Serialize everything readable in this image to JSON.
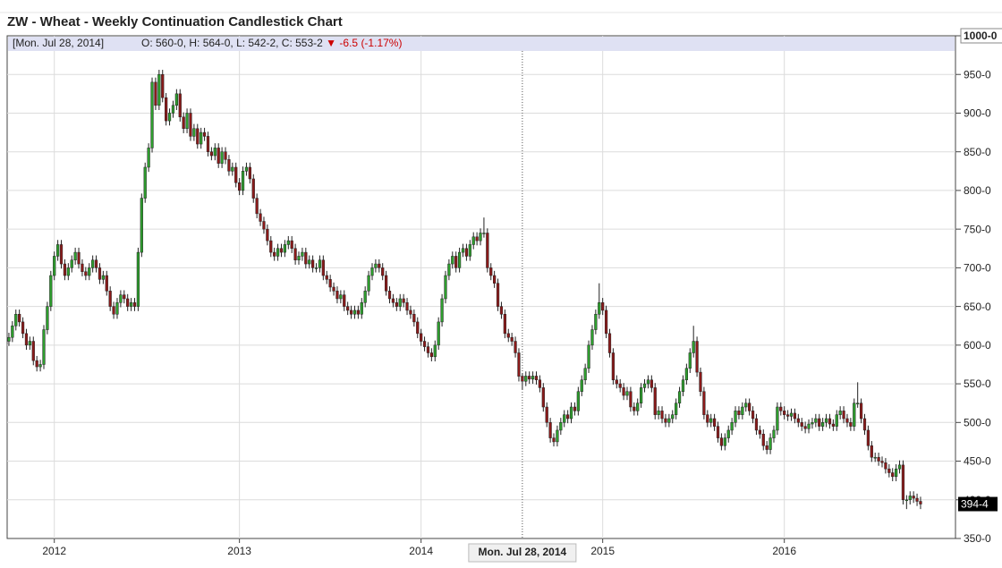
{
  "chart_data": {
    "type": "candlestick",
    "title": "ZW - Wheat - Weekly Continuation Candlestick Chart",
    "hover": {
      "date": "Mon. Jul 28, 2014",
      "date_bracketed": "[Mon. Jul 28, 2014]",
      "open": {
        "value": 560,
        "label": "O: 560-0,"
      },
      "high": {
        "value": 564,
        "label": "H: 564-0,"
      },
      "low": {
        "value": 542.25,
        "label": "L: 542-2,"
      },
      "close": {
        "value": 553.25,
        "label": "C: 553-2"
      },
      "change": {
        "value": -6.5,
        "label": "-6.5"
      },
      "change_pct": {
        "value": -1.17,
        "label": "(-1.17%)"
      }
    },
    "last_price": {
      "value": 394.5,
      "label": "394-4"
    },
    "up_color": "#2e9e2e",
    "down_color": "#8b1a1a",
    "grid": true,
    "xlim": [
      -0.5,
      271
    ],
    "xticks": [
      {
        "value": 13,
        "label": "2012"
      },
      {
        "value": 66,
        "label": "2013"
      },
      {
        "value": 118,
        "label": "2014"
      },
      {
        "value": 170,
        "label": "2015"
      },
      {
        "value": 222,
        "label": "2016"
      }
    ],
    "ylim": [
      350,
      1000
    ],
    "yticks": [
      {
        "value": 350,
        "label": "350-0"
      },
      {
        "value": 400,
        "label": "400-0"
      },
      {
        "value": 450,
        "label": "450-0"
      },
      {
        "value": 500,
        "label": "500-0"
      },
      {
        "value": 550,
        "label": "550-0"
      },
      {
        "value": 600,
        "label": "600-0"
      },
      {
        "value": 650,
        "label": "650-0"
      },
      {
        "value": 700,
        "label": "700-0"
      },
      {
        "value": 750,
        "label": "750-0"
      },
      {
        "value": 800,
        "label": "800-0"
      },
      {
        "value": 850,
        "label": "850-0"
      },
      {
        "value": 900,
        "label": "900-0"
      },
      {
        "value": 950,
        "label": "950-0"
      },
      {
        "value": 1000,
        "label": "1000-0"
      }
    ],
    "open": [
      605,
      610,
      625,
      640,
      630,
      615,
      600,
      605,
      580,
      572,
      575,
      620,
      650,
      690,
      715,
      730,
      705,
      690,
      700,
      710,
      720,
      705,
      695,
      690,
      700,
      710,
      700,
      685,
      690,
      670,
      650,
      640,
      655,
      665,
      660,
      650,
      655,
      650,
      720,
      790,
      830,
      855,
      940,
      910,
      950,
      920,
      890,
      900,
      910,
      925,
      895,
      880,
      900,
      870,
      880,
      860,
      875,
      870,
      850,
      845,
      855,
      835,
      850,
      840,
      825,
      830,
      810,
      800,
      825,
      830,
      815,
      790,
      770,
      760,
      750,
      735,
      720,
      715,
      725,
      720,
      730,
      735,
      725,
      710,
      715,
      720,
      705,
      710,
      700,
      700,
      710,
      690,
      685,
      675,
      670,
      660,
      665,
      650,
      645,
      640,
      645,
      640,
      655,
      670,
      690,
      700,
      705,
      700,
      690,
      670,
      660,
      655,
      650,
      660,
      655,
      645,
      640,
      630,
      615,
      605,
      598,
      590,
      585,
      600,
      630,
      660,
      690,
      705,
      715,
      700,
      720,
      725,
      715,
      730,
      740,
      735,
      745,
      745,
      700,
      690,
      680,
      650,
      640,
      615,
      610,
      605,
      590,
      560,
      553.25,
      560,
      556,
      560,
      555,
      545,
      520,
      500,
      480,
      475,
      490,
      500,
      510,
      505,
      520,
      515,
      540,
      555,
      570,
      600,
      620,
      640,
      655,
      645,
      615,
      590,
      555,
      550,
      545,
      535,
      540,
      520,
      515,
      525,
      545,
      550,
      555,
      545,
      510,
      515,
      505,
      500,
      505,
      510,
      525,
      540,
      555,
      570,
      590,
      605,
      565,
      540,
      510,
      500,
      505,
      495,
      480,
      470,
      480,
      490,
      500,
      515,
      510,
      520,
      525,
      515,
      505,
      490,
      485,
      470,
      465,
      480,
      490,
      520,
      515,
      510,
      508,
      512,
      505,
      500,
      495,
      492,
      498,
      500,
      505,
      495,
      500,
      505,
      498,
      495,
      510,
      515,
      505,
      500,
      495,
      525,
      525,
      505,
      490,
      470,
      455,
      455,
      450,
      448,
      440,
      435,
      430,
      440,
      445,
      400,
      400,
      405,
      402,
      398
    ],
    "high": [
      616,
      631,
      646,
      646,
      636,
      621,
      611,
      611,
      586,
      581,
      626,
      656,
      696,
      721,
      736,
      736,
      711,
      706,
      716,
      726,
      726,
      711,
      701,
      706,
      716,
      716,
      706,
      696,
      696,
      676,
      656,
      661,
      671,
      671,
      666,
      661,
      661,
      726,
      796,
      836,
      861,
      946,
      946,
      956,
      956,
      926,
      906,
      916,
      931,
      931,
      901,
      906,
      906,
      886,
      886,
      881,
      881,
      876,
      856,
      861,
      861,
      856,
      856,
      846,
      836,
      836,
      816,
      831,
      836,
      836,
      821,
      796,
      776,
      766,
      756,
      741,
      726,
      731,
      731,
      736,
      741,
      741,
      731,
      721,
      726,
      726,
      716,
      716,
      706,
      716,
      716,
      696,
      691,
      681,
      676,
      671,
      671,
      656,
      651,
      651,
      651,
      661,
      676,
      696,
      706,
      711,
      711,
      706,
      696,
      676,
      666,
      661,
      666,
      666,
      661,
      651,
      646,
      636,
      621,
      611,
      604,
      596,
      606,
      636,
      666,
      696,
      711,
      721,
      721,
      726,
      731,
      731,
      736,
      746,
      746,
      751,
      765,
      751,
      706,
      696,
      686,
      656,
      646,
      621,
      616,
      611,
      596,
      564,
      566,
      566,
      566,
      566,
      561,
      551,
      526,
      506,
      486,
      496,
      506,
      516,
      516,
      526,
      526,
      546,
      561,
      576,
      606,
      626,
      646,
      680,
      661,
      651,
      621,
      596,
      561,
      556,
      551,
      546,
      546,
      526,
      531,
      551,
      556,
      561,
      561,
      551,
      521,
      521,
      511,
      511,
      516,
      531,
      546,
      561,
      576,
      596,
      625,
      611,
      571,
      546,
      516,
      511,
      511,
      501,
      486,
      486,
      496,
      506,
      521,
      521,
      526,
      531,
      531,
      521,
      511,
      496,
      491,
      476,
      486,
      496,
      526,
      526,
      521,
      516,
      518,
      518,
      511,
      506,
      501,
      504,
      506,
      511,
      511,
      506,
      511,
      511,
      504,
      516,
      521,
      521,
      511,
      506,
      531,
      552,
      531,
      511,
      496,
      476,
      461,
      461,
      456,
      454,
      446,
      441,
      446,
      451,
      451,
      406,
      411,
      411,
      408,
      404
    ],
    "low": [
      599,
      604,
      619,
      624,
      609,
      594,
      594,
      574,
      566,
      566,
      569,
      614,
      644,
      684,
      709,
      699,
      684,
      684,
      694,
      704,
      699,
      689,
      684,
      684,
      694,
      694,
      679,
      679,
      664,
      644,
      634,
      634,
      649,
      654,
      644,
      644,
      644,
      644,
      714,
      784,
      824,
      849,
      904,
      904,
      914,
      884,
      884,
      894,
      904,
      889,
      874,
      874,
      864,
      864,
      854,
      854,
      864,
      844,
      839,
      839,
      829,
      829,
      834,
      819,
      819,
      804,
      794,
      794,
      819,
      809,
      784,
      764,
      754,
      744,
      729,
      714,
      709,
      709,
      714,
      714,
      724,
      719,
      704,
      704,
      709,
      699,
      699,
      694,
      694,
      694,
      684,
      679,
      669,
      664,
      654,
      654,
      644,
      639,
      634,
      634,
      634,
      634,
      649,
      664,
      684,
      694,
      694,
      684,
      664,
      654,
      649,
      644,
      644,
      649,
      639,
      634,
      624,
      609,
      599,
      592,
      584,
      579,
      579,
      594,
      624,
      654,
      684,
      699,
      694,
      694,
      714,
      709,
      709,
      724,
      729,
      729,
      739,
      694,
      684,
      674,
      644,
      634,
      609,
      604,
      599,
      584,
      553,
      542.25,
      547,
      550,
      550,
      549,
      539,
      514,
      494,
      474,
      469,
      469,
      484,
      494,
      499,
      499,
      509,
      509,
      534,
      549,
      564,
      594,
      614,
      634,
      639,
      609,
      584,
      549,
      544,
      539,
      529,
      529,
      514,
      509,
      509,
      519,
      539,
      544,
      539,
      504,
      504,
      499,
      494,
      494,
      499,
      504,
      519,
      534,
      549,
      564,
      584,
      559,
      534,
      504,
      494,
      494,
      489,
      474,
      464,
      464,
      474,
      484,
      494,
      504,
      504,
      514,
      509,
      499,
      484,
      479,
      464,
      459,
      459,
      474,
      484,
      509,
      504,
      502,
      502,
      499,
      494,
      489,
      486,
      486,
      492,
      494,
      489,
      489,
      494,
      492,
      489,
      489,
      504,
      499,
      494,
      489,
      489,
      519,
      499,
      484,
      464,
      449,
      449,
      444,
      442,
      434,
      429,
      424,
      424,
      434,
      394,
      388,
      394,
      396,
      392,
      388
    ],
    "close": [
      610,
      625,
      640,
      630,
      615,
      600,
      605,
      580,
      572,
      575,
      620,
      650,
      690,
      715,
      730,
      705,
      690,
      700,
      710,
      720,
      705,
      695,
      690,
      700,
      710,
      700,
      685,
      690,
      670,
      650,
      640,
      655,
      665,
      660,
      650,
      655,
      650,
      720,
      790,
      830,
      855,
      940,
      910,
      950,
      920,
      890,
      900,
      910,
      925,
      895,
      880,
      900,
      870,
      880,
      860,
      875,
      870,
      850,
      845,
      855,
      835,
      850,
      840,
      825,
      830,
      810,
      800,
      825,
      830,
      815,
      790,
      770,
      760,
      750,
      735,
      720,
      715,
      725,
      720,
      730,
      735,
      725,
      710,
      715,
      720,
      705,
      710,
      700,
      700,
      710,
      690,
      685,
      675,
      670,
      660,
      665,
      650,
      645,
      640,
      645,
      640,
      655,
      670,
      690,
      700,
      705,
      700,
      690,
      670,
      660,
      655,
      650,
      660,
      655,
      645,
      640,
      630,
      615,
      605,
      598,
      590,
      585,
      600,
      630,
      660,
      690,
      705,
      715,
      700,
      720,
      725,
      715,
      730,
      740,
      735,
      745,
      745,
      700,
      690,
      680,
      650,
      640,
      615,
      610,
      605,
      590,
      559.75,
      553.25,
      560,
      556,
      560,
      555,
      545,
      520,
      500,
      480,
      475,
      490,
      500,
      510,
      505,
      520,
      515,
      540,
      555,
      570,
      600,
      620,
      640,
      655,
      645,
      615,
      590,
      555,
      550,
      545,
      535,
      540,
      520,
      515,
      525,
      545,
      550,
      555,
      545,
      510,
      515,
      505,
      500,
      505,
      510,
      525,
      540,
      555,
      570,
      590,
      605,
      565,
      540,
      510,
      500,
      505,
      495,
      480,
      470,
      480,
      490,
      500,
      515,
      510,
      520,
      525,
      515,
      505,
      490,
      485,
      470,
      465,
      480,
      490,
      520,
      515,
      510,
      508,
      512,
      505,
      500,
      495,
      492,
      498,
      500,
      505,
      495,
      500,
      505,
      498,
      495,
      510,
      515,
      505,
      500,
      495,
      525,
      525,
      505,
      490,
      470,
      455,
      455,
      450,
      448,
      440,
      435,
      430,
      440,
      445,
      400,
      400,
      405,
      402,
      398,
      394.5
    ]
  }
}
